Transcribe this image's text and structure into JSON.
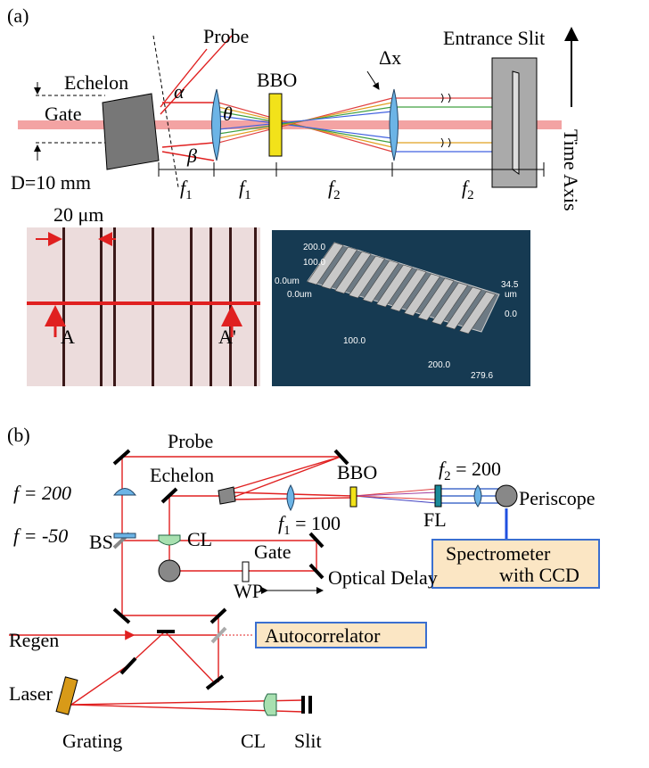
{
  "panel_a": {
    "label": "(a)",
    "probe": "Probe",
    "echelon": "Echelon",
    "gate": "Gate",
    "alpha": "α",
    "beta": "β",
    "theta": "θ",
    "bbo": "BBO",
    "delta_x": "Δx",
    "entrance_slit": "Entrance Slit",
    "time_axis": "Time Axis",
    "d": "D=10 mm",
    "focal": [
      {
        "symbol": "f",
        "sub": "1"
      },
      {
        "symbol": "f",
        "sub": "1"
      },
      {
        "symbol": "f",
        "sub": "2"
      },
      {
        "symbol": "f",
        "sub": "2"
      }
    ],
    "scale": "20 μm",
    "a": "A",
    "a_prime": "A'",
    "profile_labels": [
      "200.0",
      "100.0",
      "0.0um",
      "0.0um",
      "100.0",
      "200.0",
      "279.6",
      "34.5",
      "um",
      "0.0"
    ]
  },
  "panel_b": {
    "label": "(b)",
    "probe": "Probe",
    "f200": "f = 200",
    "echelon": "Echelon",
    "bbo": "BBO",
    "f2": {
      "symbol": "f",
      "sub": "2",
      "rest": " = 200"
    },
    "periscope": "Periscope",
    "f50": "f = -50",
    "cl_top": "CL",
    "f1": {
      "symbol": "f",
      "sub": "1",
      "rest": " = 100"
    },
    "fl": "FL",
    "bs": "BS",
    "gate": "Gate",
    "spectrometer": [
      "Spectrometer",
      "with CCD"
    ],
    "wp": "WP",
    "optical_delay": "Optical Delay",
    "regen": "Regen",
    "autocorrelator": "Autocorrelator",
    "laser": "Laser",
    "grating": "Grating",
    "cl_bottom": "CL",
    "slit": "Slit"
  }
}
